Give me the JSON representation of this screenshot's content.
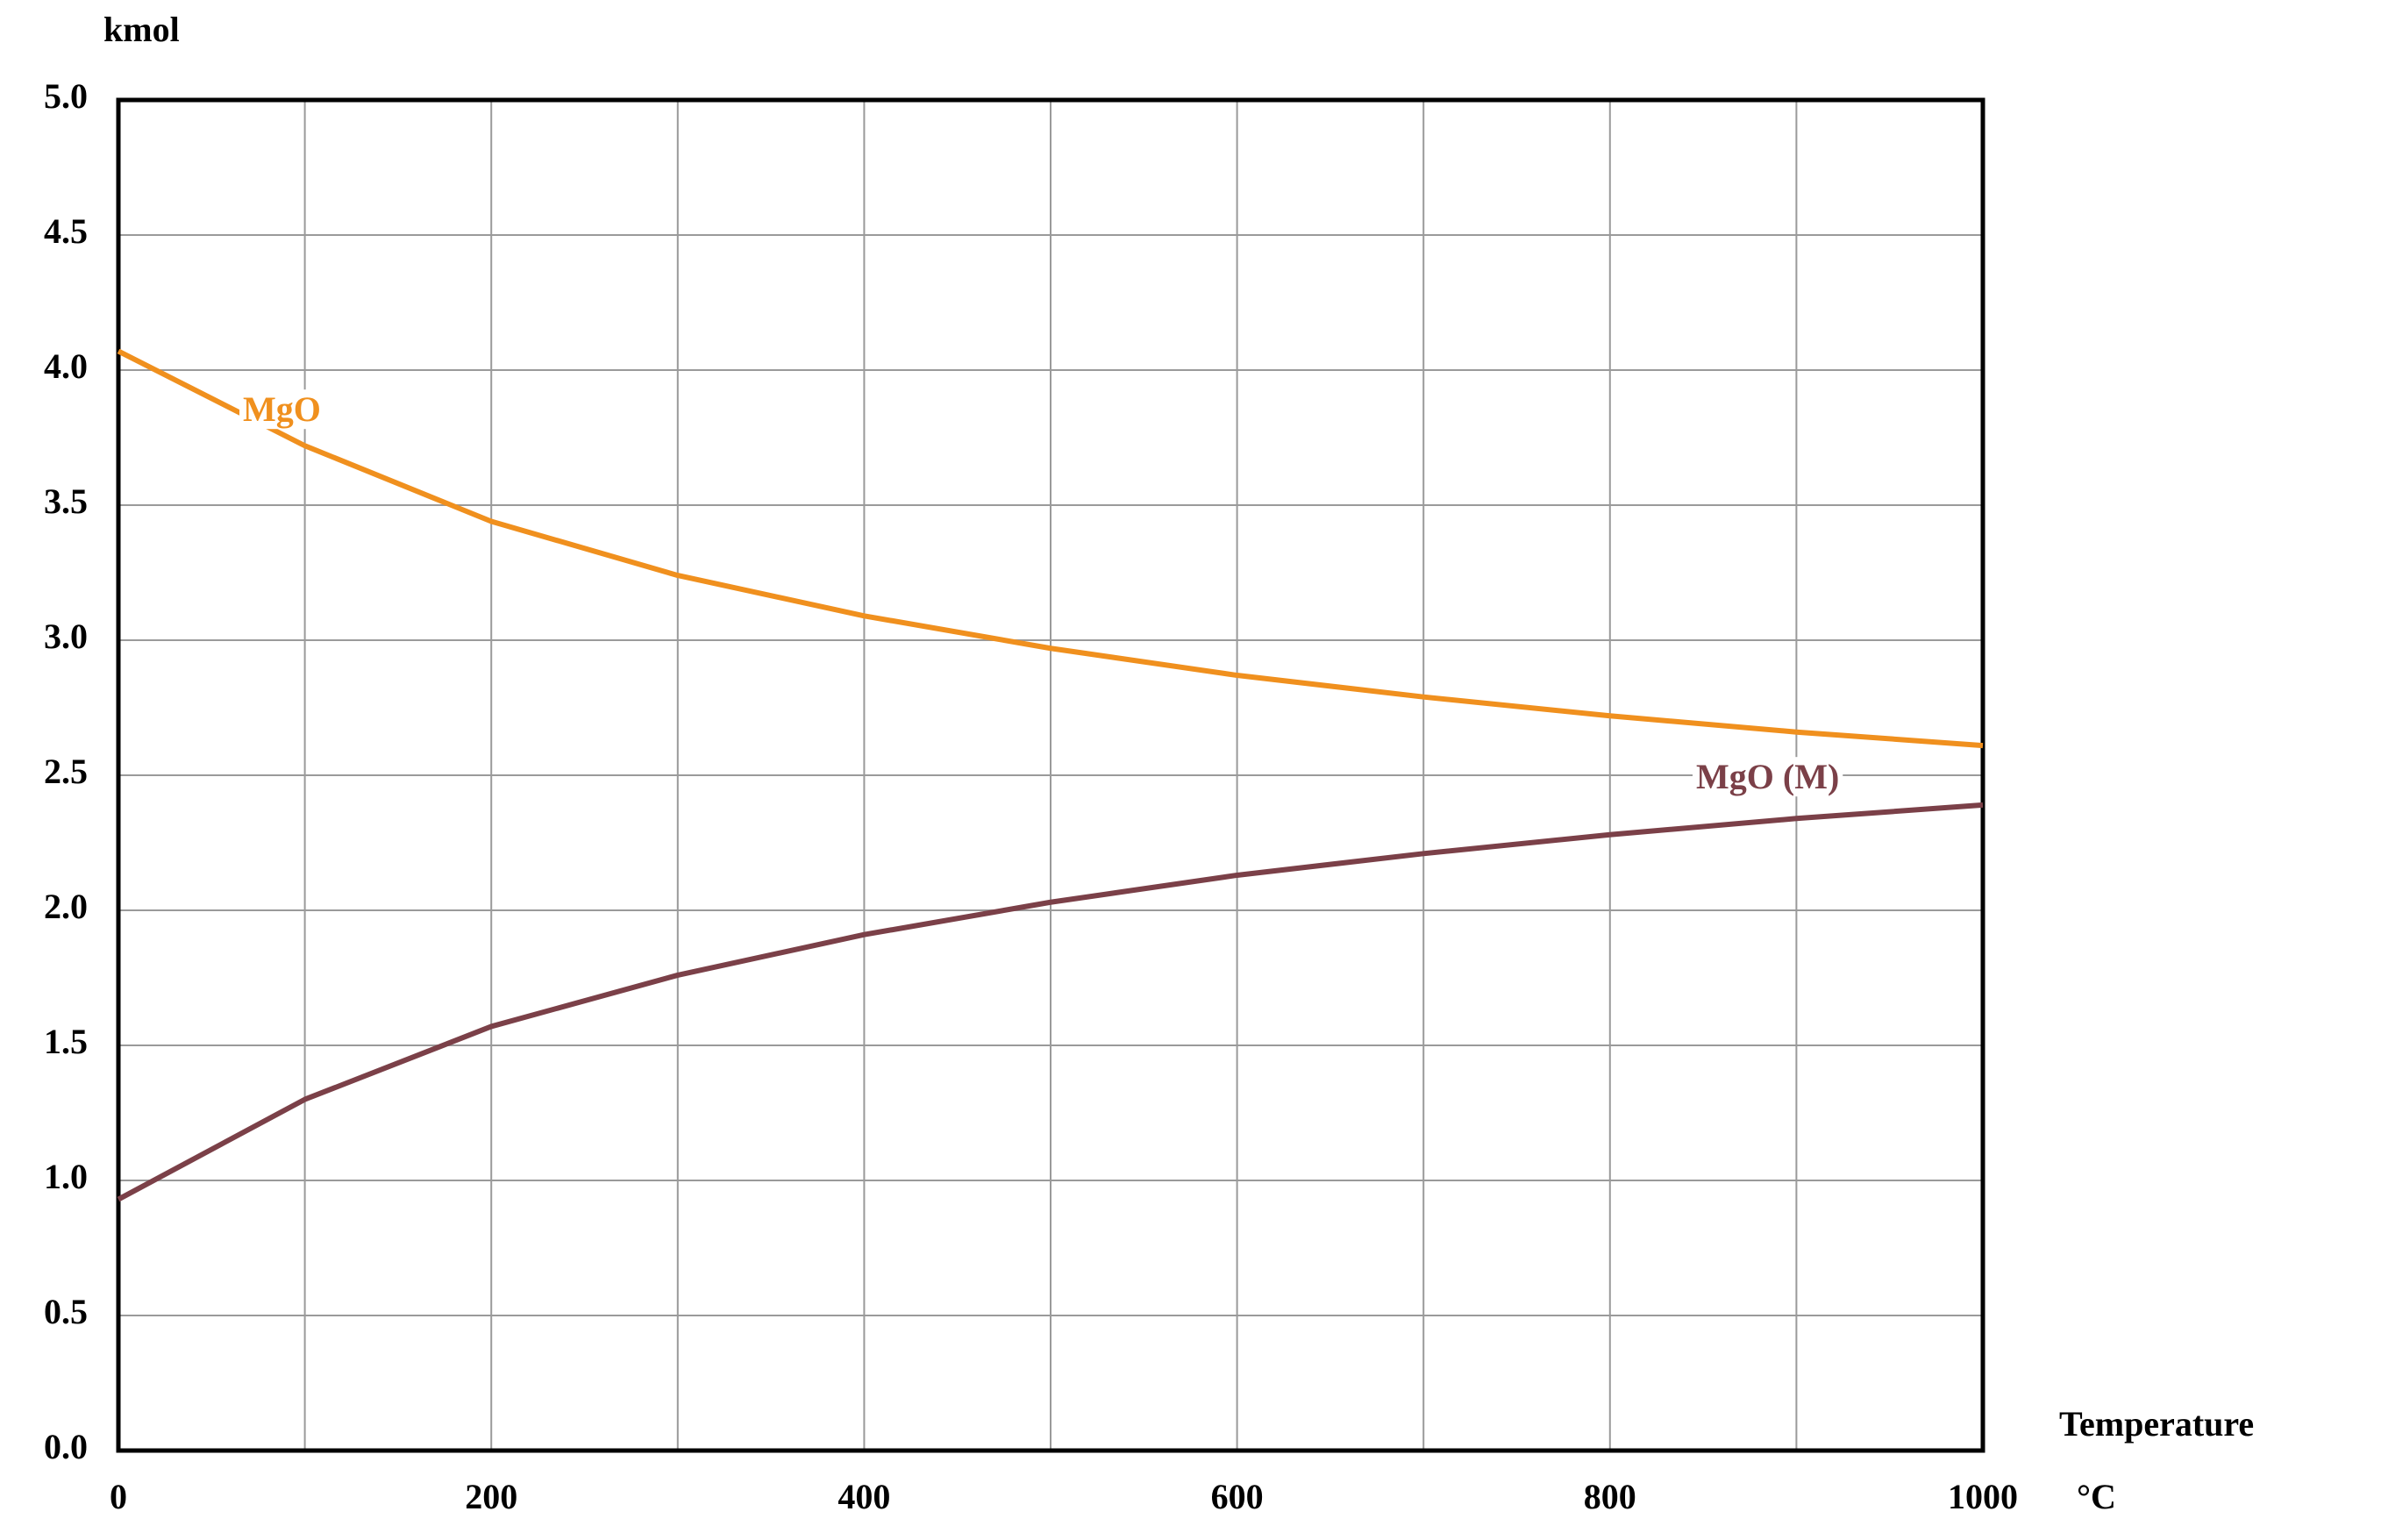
{
  "chart_data": {
    "type": "line",
    "y_label": "kmol",
    "x_label": "Temperature",
    "x_unit": "°C",
    "x": [
      0,
      100,
      200,
      300,
      400,
      500,
      600,
      700,
      800,
      900,
      1000
    ],
    "series": [
      {
        "name": "MgO",
        "color": "#f0901e",
        "values": [
          4.07,
          3.72,
          3.44,
          3.24,
          3.09,
          2.97,
          2.87,
          2.79,
          2.72,
          2.66,
          2.61
        ]
      },
      {
        "name": "MgO (M)",
        "color": "#7b4048",
        "values": [
          0.93,
          1.3,
          1.57,
          1.76,
          1.91,
          2.03,
          2.13,
          2.21,
          2.28,
          2.34,
          2.39
        ]
      }
    ],
    "xlim": [
      0,
      1000
    ],
    "xticks": [
      0,
      200,
      400,
      600,
      800,
      1000
    ],
    "x_minor_grid": [
      100,
      300,
      500,
      700,
      900
    ],
    "ylim": [
      0,
      5
    ],
    "yticks": [
      {
        "value": 0,
        "label": "0.0"
      },
      0.5,
      {
        "value": 1,
        "label": "1.0"
      },
      1.5,
      {
        "value": 2,
        "label": "2.0"
      },
      2.5,
      {
        "value": 3,
        "label": "3.0"
      },
      3.5,
      {
        "value": 4,
        "label": "4.0"
      },
      4.5,
      {
        "value": 5,
        "label": "5.0"
      }
    ],
    "grid": true
  }
}
